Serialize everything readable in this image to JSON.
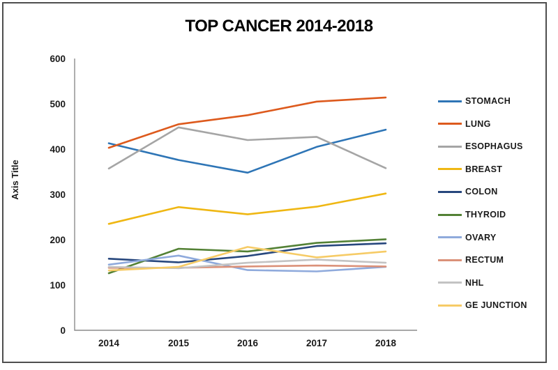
{
  "chart_data": {
    "type": "line",
    "title": "TOP CANCER 2014-2018",
    "ylabel": "Axis Title",
    "xlabel": "",
    "categories": [
      "2014",
      "2015",
      "2016",
      "2017",
      "2018"
    ],
    "yticks": [
      0,
      100,
      200,
      300,
      400,
      500,
      600
    ],
    "ylim": [
      0,
      600
    ],
    "gridlines": false,
    "legend_position": "right",
    "axis_color": "#8c8c8c",
    "text_color": "#1a1a1a",
    "series": [
      {
        "name": "STOMACH",
        "color": "#2E75B6",
        "values": [
          413,
          376,
          348,
          405,
          443
        ]
      },
      {
        "name": "LUNG",
        "color": "#DD5A1D",
        "values": [
          403,
          455,
          475,
          505,
          514
        ]
      },
      {
        "name": "ESOPHAGUS",
        "color": "#A5A5A5",
        "values": [
          357,
          448,
          420,
          427,
          358
        ]
      },
      {
        "name": "BREAST",
        "color": "#EFB713",
        "values": [
          235,
          272,
          256,
          273,
          302
        ]
      },
      {
        "name": "COLON",
        "color": "#27477D",
        "values": [
          158,
          150,
          164,
          186,
          192
        ]
      },
      {
        "name": "THYROID",
        "color": "#538135",
        "values": [
          126,
          180,
          174,
          193,
          201
        ]
      },
      {
        "name": "OVARY",
        "color": "#8FAADC",
        "values": [
          145,
          165,
          133,
          130,
          140
        ]
      },
      {
        "name": "RECTUM",
        "color": "#DB9179",
        "values": [
          138,
          138,
          141,
          143,
          141
        ]
      },
      {
        "name": "NHL",
        "color": "#C3C3C3",
        "values": [
          140,
          137,
          149,
          156,
          149
        ]
      },
      {
        "name": "GE JUNCTION",
        "color": "#F6CB66",
        "values": [
          132,
          140,
          184,
          161,
          174
        ]
      }
    ]
  }
}
